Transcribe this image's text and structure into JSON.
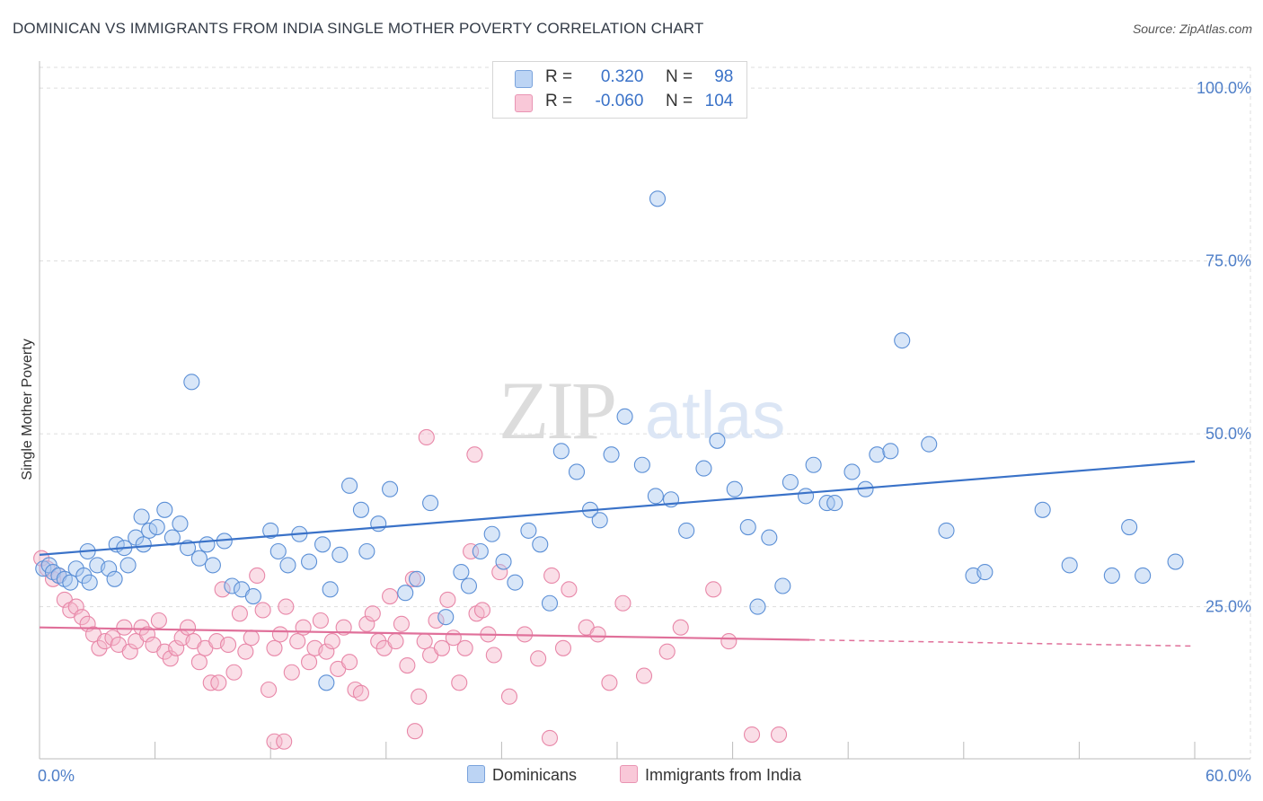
{
  "title": "DOMINICAN VS IMMIGRANTS FROM INDIA SINGLE MOTHER POVERTY CORRELATION CHART",
  "source": "Source: ZipAtlas.com",
  "watermark": {
    "zip": "ZIP",
    "atlas": "atlas"
  },
  "legend": {
    "rows": [
      {
        "r_label": "R =",
        "r_value": "0.320",
        "n_label": "N =",
        "n_value": "98"
      },
      {
        "r_label": "R =",
        "r_value": "-0.060",
        "n_label": "N =",
        "n_value": "104"
      }
    ]
  },
  "bottom_legend": [
    "Dominicans",
    "Immigrants from India"
  ],
  "colors": {
    "blue_fill": "#a9c8f0",
    "blue_stroke": "#5b8fd6",
    "blue_line": "#3a72c8",
    "pink_fill": "#f5b6ca",
    "pink_stroke": "#e887a8",
    "pink_line": "#e0709a",
    "tick": "#4f7fc8",
    "grid": "#dddddd"
  },
  "chart_data": {
    "type": "scatter",
    "title": "DOMINICAN VS IMMIGRANTS FROM INDIA SINGLE MOTHER POVERTY CORRELATION CHART",
    "xlabel": "",
    "ylabel": "Single Mother Poverty",
    "xlim": [
      0,
      60
    ],
    "ylim": [
      3,
      103
    ],
    "x_tick_labels": [
      {
        "value": 0,
        "label": "0.0%"
      },
      {
        "value": 60,
        "label": "60.0%"
      }
    ],
    "y_tick_labels": [
      {
        "value": 25,
        "label": "25.0%"
      },
      {
        "value": 50,
        "label": "50.0%"
      },
      {
        "value": 75,
        "label": "75.0%"
      },
      {
        "value": 100,
        "label": "100.0%"
      }
    ],
    "grid": true,
    "series": [
      {
        "name": "Dominicans",
        "color": "blue",
        "trend": {
          "x": [
            0,
            60
          ],
          "y": [
            32.5,
            46.0
          ],
          "solid_until": 60
        },
        "points": [
          [
            0.2,
            30.5
          ],
          [
            0.5,
            31
          ],
          [
            0.7,
            30
          ],
          [
            1,
            29.5
          ],
          [
            1.3,
            29
          ],
          [
            1.6,
            28.5
          ],
          [
            1.9,
            30.5
          ],
          [
            2.3,
            29.5
          ],
          [
            2.6,
            28.5
          ],
          [
            3.0,
            31.0
          ],
          [
            2.5,
            33
          ],
          [
            3.6,
            30.5
          ],
          [
            3.9,
            29.0
          ],
          [
            4.0,
            34
          ],
          [
            4.4,
            33.5
          ],
          [
            4.6,
            31
          ],
          [
            5,
            35
          ],
          [
            5.4,
            34
          ],
          [
            5.7,
            36
          ],
          [
            6.1,
            36.5
          ],
          [
            6.5,
            39
          ],
          [
            6.9,
            35
          ],
          [
            7.3,
            37
          ],
          [
            7.7,
            33.5
          ],
          [
            8.3,
            32
          ],
          [
            8.7,
            34
          ],
          [
            9.0,
            31
          ],
          [
            9.6,
            34.5
          ],
          [
            10.0,
            28
          ],
          [
            10.5,
            27.5
          ],
          [
            11.1,
            26.5
          ],
          [
            12.0,
            36
          ],
          [
            12.4,
            33
          ],
          [
            12.9,
            31
          ],
          [
            13.5,
            35.5
          ],
          [
            14.0,
            31.5
          ],
          [
            14.7,
            34
          ],
          [
            15.1,
            27.5
          ],
          [
            15.6,
            32.5
          ],
          [
            16.1,
            42.5
          ],
          [
            16.7,
            39
          ],
          [
            17.0,
            33
          ],
          [
            17.6,
            37
          ],
          [
            18.2,
            42
          ],
          [
            19.0,
            27
          ],
          [
            19.6,
            29
          ],
          [
            20.3,
            40
          ],
          [
            21.1,
            23.5
          ],
          [
            21.9,
            30
          ],
          [
            22.3,
            28
          ],
          [
            22.9,
            33
          ],
          [
            23.5,
            35.5
          ],
          [
            24.1,
            31.5
          ],
          [
            24.7,
            28.5
          ],
          [
            25.4,
            36
          ],
          [
            26.0,
            34
          ],
          [
            26.5,
            25.5
          ],
          [
            27.1,
            47.5
          ],
          [
            27.9,
            44.5
          ],
          [
            28.6,
            39
          ],
          [
            29.1,
            37.5
          ],
          [
            29.7,
            47
          ],
          [
            30.4,
            52.5
          ],
          [
            31.3,
            45.5
          ],
          [
            32.0,
            41
          ],
          [
            32.8,
            40.5
          ],
          [
            33.6,
            36
          ],
          [
            34.5,
            45
          ],
          [
            35.2,
            49
          ],
          [
            36.1,
            42
          ],
          [
            36.8,
            36.5
          ],
          [
            37.3,
            25
          ],
          [
            37.9,
            35
          ],
          [
            38.6,
            28
          ],
          [
            39.0,
            43
          ],
          [
            39.8,
            41
          ],
          [
            40.2,
            45.5
          ],
          [
            40.9,
            40
          ],
          [
            41.3,
            40
          ],
          [
            42.2,
            44.5
          ],
          [
            42.9,
            42
          ],
          [
            43.5,
            47
          ],
          [
            44.2,
            47.5
          ],
          [
            44.8,
            63.5
          ],
          [
            46.2,
            48.5
          ],
          [
            47.1,
            36
          ],
          [
            48.5,
            29.5
          ],
          [
            49.1,
            30
          ],
          [
            52.1,
            39
          ],
          [
            53.5,
            31
          ],
          [
            55.7,
            29.5
          ],
          [
            56.6,
            36.5
          ],
          [
            57.3,
            29.5
          ],
          [
            59.0,
            31.5
          ],
          [
            32.1,
            84
          ],
          [
            7.9,
            57.5
          ],
          [
            5.3,
            38
          ],
          [
            14.9,
            14
          ]
        ]
      },
      {
        "name": "Immigrants from India",
        "color": "pink",
        "trend": {
          "x": [
            0,
            60
          ],
          "y": [
            22.0,
            19.3
          ],
          "solid_until": 40.0
        },
        "points": [
          [
            0.1,
            32
          ],
          [
            0.4,
            30.5
          ],
          [
            0.7,
            29
          ],
          [
            1.0,
            29.5
          ],
          [
            1.3,
            26
          ],
          [
            1.6,
            24.5
          ],
          [
            1.9,
            25
          ],
          [
            2.2,
            23.5
          ],
          [
            2.5,
            22.5
          ],
          [
            2.8,
            21
          ],
          [
            3.1,
            19
          ],
          [
            3.4,
            20
          ],
          [
            3.8,
            20.5
          ],
          [
            4.1,
            19.5
          ],
          [
            4.4,
            22
          ],
          [
            4.7,
            18.5
          ],
          [
            5.0,
            20
          ],
          [
            5.3,
            22
          ],
          [
            5.6,
            21
          ],
          [
            5.9,
            19.5
          ],
          [
            6.2,
            23
          ],
          [
            6.5,
            18.5
          ],
          [
            6.8,
            17.5
          ],
          [
            7.1,
            19
          ],
          [
            7.4,
            20.5
          ],
          [
            7.7,
            22
          ],
          [
            8.0,
            20
          ],
          [
            8.3,
            17
          ],
          [
            8.6,
            19
          ],
          [
            8.9,
            14
          ],
          [
            9.2,
            20
          ],
          [
            9.5,
            27.5
          ],
          [
            9.8,
            19.5
          ],
          [
            10.1,
            15.5
          ],
          [
            10.4,
            24
          ],
          [
            10.7,
            18.5
          ],
          [
            11.0,
            20.5
          ],
          [
            11.3,
            29.5
          ],
          [
            11.6,
            24.5
          ],
          [
            11.9,
            13
          ],
          [
            12.2,
            19
          ],
          [
            12.5,
            21
          ],
          [
            12.8,
            25
          ],
          [
            13.1,
            15.5
          ],
          [
            13.4,
            20
          ],
          [
            13.7,
            22
          ],
          [
            14.0,
            17
          ],
          [
            14.3,
            19
          ],
          [
            14.6,
            23
          ],
          [
            14.9,
            18.5
          ],
          [
            15.2,
            20
          ],
          [
            15.5,
            16
          ],
          [
            15.8,
            22
          ],
          [
            16.1,
            17
          ],
          [
            16.4,
            13
          ],
          [
            16.7,
            12.5
          ],
          [
            17.0,
            22.5
          ],
          [
            17.3,
            24
          ],
          [
            17.6,
            20
          ],
          [
            17.9,
            19
          ],
          [
            18.2,
            26.5
          ],
          [
            18.5,
            20
          ],
          [
            18.8,
            22.5
          ],
          [
            19.1,
            16.5
          ],
          [
            19.4,
            29
          ],
          [
            19.7,
            12
          ],
          [
            20.0,
            20
          ],
          [
            20.3,
            18
          ],
          [
            20.6,
            23
          ],
          [
            20.9,
            19
          ],
          [
            21.2,
            26
          ],
          [
            21.5,
            20.5
          ],
          [
            21.8,
            14
          ],
          [
            22.1,
            19
          ],
          [
            22.4,
            33
          ],
          [
            22.7,
            24
          ],
          [
            23.0,
            24.5
          ],
          [
            23.3,
            21
          ],
          [
            23.6,
            18
          ],
          [
            23.9,
            30
          ],
          [
            24.4,
            12
          ],
          [
            25.2,
            21
          ],
          [
            25.9,
            17.5
          ],
          [
            26.6,
            29.5
          ],
          [
            27.2,
            19
          ],
          [
            27.5,
            27.5
          ],
          [
            28.4,
            22
          ],
          [
            29.0,
            21
          ],
          [
            29.6,
            14
          ],
          [
            30.3,
            25.5
          ],
          [
            31.4,
            15
          ],
          [
            32.6,
            18.5
          ],
          [
            33.3,
            22
          ],
          [
            35.0,
            27.5
          ],
          [
            35.8,
            20
          ],
          [
            37.0,
            6.5
          ],
          [
            38.4,
            6.5
          ],
          [
            20.1,
            49.5
          ],
          [
            22.6,
            47
          ],
          [
            26.5,
            6
          ],
          [
            12.2,
            5.5
          ],
          [
            12.7,
            5.5
          ],
          [
            19.5,
            7
          ],
          [
            9.3,
            14
          ]
        ]
      }
    ]
  }
}
